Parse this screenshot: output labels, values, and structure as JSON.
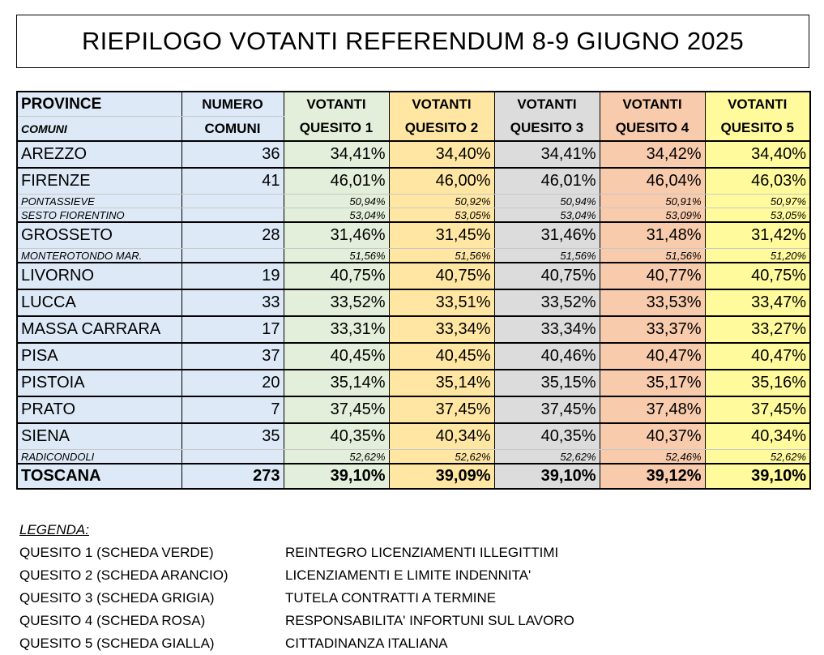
{
  "title": "RIEPILOGO VOTANTI REFERENDUM 8-9 GIUGNO 2025",
  "header": {
    "province": "PROVINCE",
    "comuni": "COMUNI",
    "numero": "NUMERO",
    "numero2": "COMUNI",
    "votanti": "VOTANTI",
    "quesiti": [
      "QUESITO 1",
      "QUESITO 2",
      "QUESITO 3",
      "QUESITO 4",
      "QUESITO 5"
    ]
  },
  "colors": {
    "province": "#dde9f6",
    "quesito_1": "#e3efda",
    "quesito_2": "#ffe7a3",
    "quesito_3": "#dcdcdc",
    "quesito_4": "#f8cbad",
    "quesito_5": "#fffb9c"
  },
  "rows": [
    {
      "kind": "main",
      "group_start": true,
      "name": "AREZZO",
      "num": "36",
      "values": [
        "34,41%",
        "34,40%",
        "34,41%",
        "34,42%",
        "34,40%"
      ]
    },
    {
      "kind": "main",
      "group_start": true,
      "name": "FIRENZE",
      "num": "41",
      "values": [
        "46,01%",
        "46,00%",
        "46,01%",
        "46,04%",
        "46,03%"
      ]
    },
    {
      "kind": "sub",
      "name": "PONTASSIEVE",
      "num": "",
      "values": [
        "50,94%",
        "50,92%",
        "50,94%",
        "50,91%",
        "50,97%"
      ]
    },
    {
      "kind": "sub",
      "name": "SESTO FIORENTINO",
      "num": "",
      "values": [
        "53,04%",
        "53,05%",
        "53,04%",
        "53,09%",
        "53,05%"
      ]
    },
    {
      "kind": "main",
      "group_start": true,
      "name": "GROSSETO",
      "num": "28",
      "values": [
        "31,46%",
        "31,45%",
        "31,46%",
        "31,48%",
        "31,42%"
      ]
    },
    {
      "kind": "sub",
      "name": "MONTEROTONDO MAR.",
      "num": "",
      "values": [
        "51,56%",
        "51,56%",
        "51,56%",
        "51,56%",
        "51,20%"
      ]
    },
    {
      "kind": "main",
      "group_start": true,
      "name": "LIVORNO",
      "num": "19",
      "values": [
        "40,75%",
        "40,75%",
        "40,75%",
        "40,77%",
        "40,75%"
      ]
    },
    {
      "kind": "main",
      "group_start": true,
      "name": "LUCCA",
      "num": "33",
      "values": [
        "33,52%",
        "33,51%",
        "33,52%",
        "33,53%",
        "33,47%"
      ]
    },
    {
      "kind": "main",
      "group_start": true,
      "name": "MASSA CARRARA",
      "num": "17",
      "values": [
        "33,31%",
        "33,34%",
        "33,34%",
        "33,37%",
        "33,27%"
      ]
    },
    {
      "kind": "main",
      "group_start": true,
      "name": "PISA",
      "num": "37",
      "values": [
        "40,45%",
        "40,45%",
        "40,46%",
        "40,47%",
        "40,47%"
      ]
    },
    {
      "kind": "main",
      "group_start": true,
      "name": "PISTOIA",
      "num": "20",
      "values": [
        "35,14%",
        "35,14%",
        "35,15%",
        "35,17%",
        "35,16%"
      ]
    },
    {
      "kind": "main",
      "group_start": true,
      "name": "PRATO",
      "num": "7",
      "values": [
        "37,45%",
        "37,45%",
        "37,45%",
        "37,48%",
        "37,45%"
      ]
    },
    {
      "kind": "main",
      "group_start": true,
      "name": "SIENA",
      "num": "35",
      "values": [
        "40,35%",
        "40,34%",
        "40,35%",
        "40,37%",
        "40,34%"
      ]
    },
    {
      "kind": "sub",
      "name": "RADICONDOLI",
      "num": "",
      "values": [
        "52,62%",
        "52,62%",
        "52,62%",
        "52,46%",
        "52,62%"
      ]
    },
    {
      "kind": "total",
      "group_start": true,
      "name": "TOSCANA",
      "num": "273",
      "values": [
        "39,10%",
        "39,09%",
        "39,10%",
        "39,12%",
        "39,10%"
      ]
    }
  ],
  "legend": {
    "title": "LEGENDA:",
    "items": [
      {
        "key": "QUESITO 1 (SCHEDA VERDE)",
        "desc": "REINTEGRO LICENZIAMENTI ILLEGITTIMI"
      },
      {
        "key": "QUESITO 2 (SCHEDA ARANCIO)",
        "desc": "LICENZIAMENTI E LIMITE INDENNITA'"
      },
      {
        "key": "QUESITO 3 (SCHEDA GRIGIA)",
        "desc": "TUTELA CONTRATTI A TERMINE"
      },
      {
        "key": "QUESITO 4 (SCHEDA ROSA)",
        "desc": "RESPONSABILITA' INFORTUNI SUL LAVORO"
      },
      {
        "key": "QUESITO 5 (SCHEDA GIALLA)",
        "desc": "CITTADINANZA ITALIANA"
      }
    ]
  }
}
